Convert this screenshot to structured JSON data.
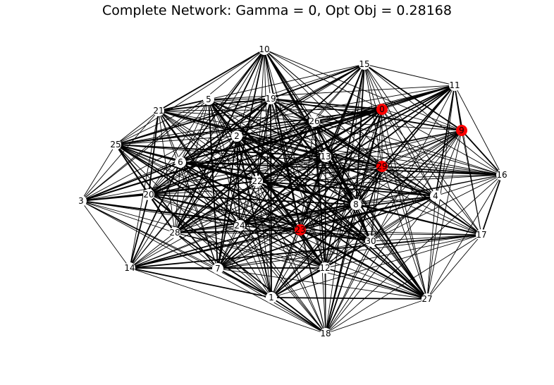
{
  "title": "Complete Network: Gamma = 0, Opt Obj = 0.28168",
  "colors": {
    "default_node": "#ffffff",
    "selected_node": "#ff0000",
    "edge": "#000000"
  },
  "nodes": [
    {
      "id": "1",
      "selected": false
    },
    {
      "id": "2",
      "selected": false
    },
    {
      "id": "3",
      "selected": false
    },
    {
      "id": "4",
      "selected": false
    },
    {
      "id": "5",
      "selected": false
    },
    {
      "id": "6",
      "selected": false
    },
    {
      "id": "7",
      "selected": false
    },
    {
      "id": "8",
      "selected": false
    },
    {
      "id": "9",
      "selected": true
    },
    {
      "id": "10",
      "selected": false
    },
    {
      "id": "11",
      "selected": false
    },
    {
      "id": "12",
      "selected": false
    },
    {
      "id": "13",
      "selected": false
    },
    {
      "id": "14",
      "selected": false
    },
    {
      "id": "15",
      "selected": false
    },
    {
      "id": "16",
      "selected": false
    },
    {
      "id": "17",
      "selected": false
    },
    {
      "id": "18",
      "selected": false
    },
    {
      "id": "19",
      "selected": false
    },
    {
      "id": "20",
      "selected": false
    },
    {
      "id": "21",
      "selected": false
    },
    {
      "id": "22",
      "selected": false
    },
    {
      "id": "23",
      "selected": true
    },
    {
      "id": "24",
      "selected": false
    },
    {
      "id": "25",
      "selected": false
    },
    {
      "id": "26",
      "selected": false
    },
    {
      "id": "27",
      "selected": false
    },
    {
      "id": "28",
      "selected": false
    },
    {
      "id": "29",
      "selected": true
    },
    {
      "id": "30",
      "selected": false
    },
    {
      "id": "0",
      "selected": true
    }
  ]
}
